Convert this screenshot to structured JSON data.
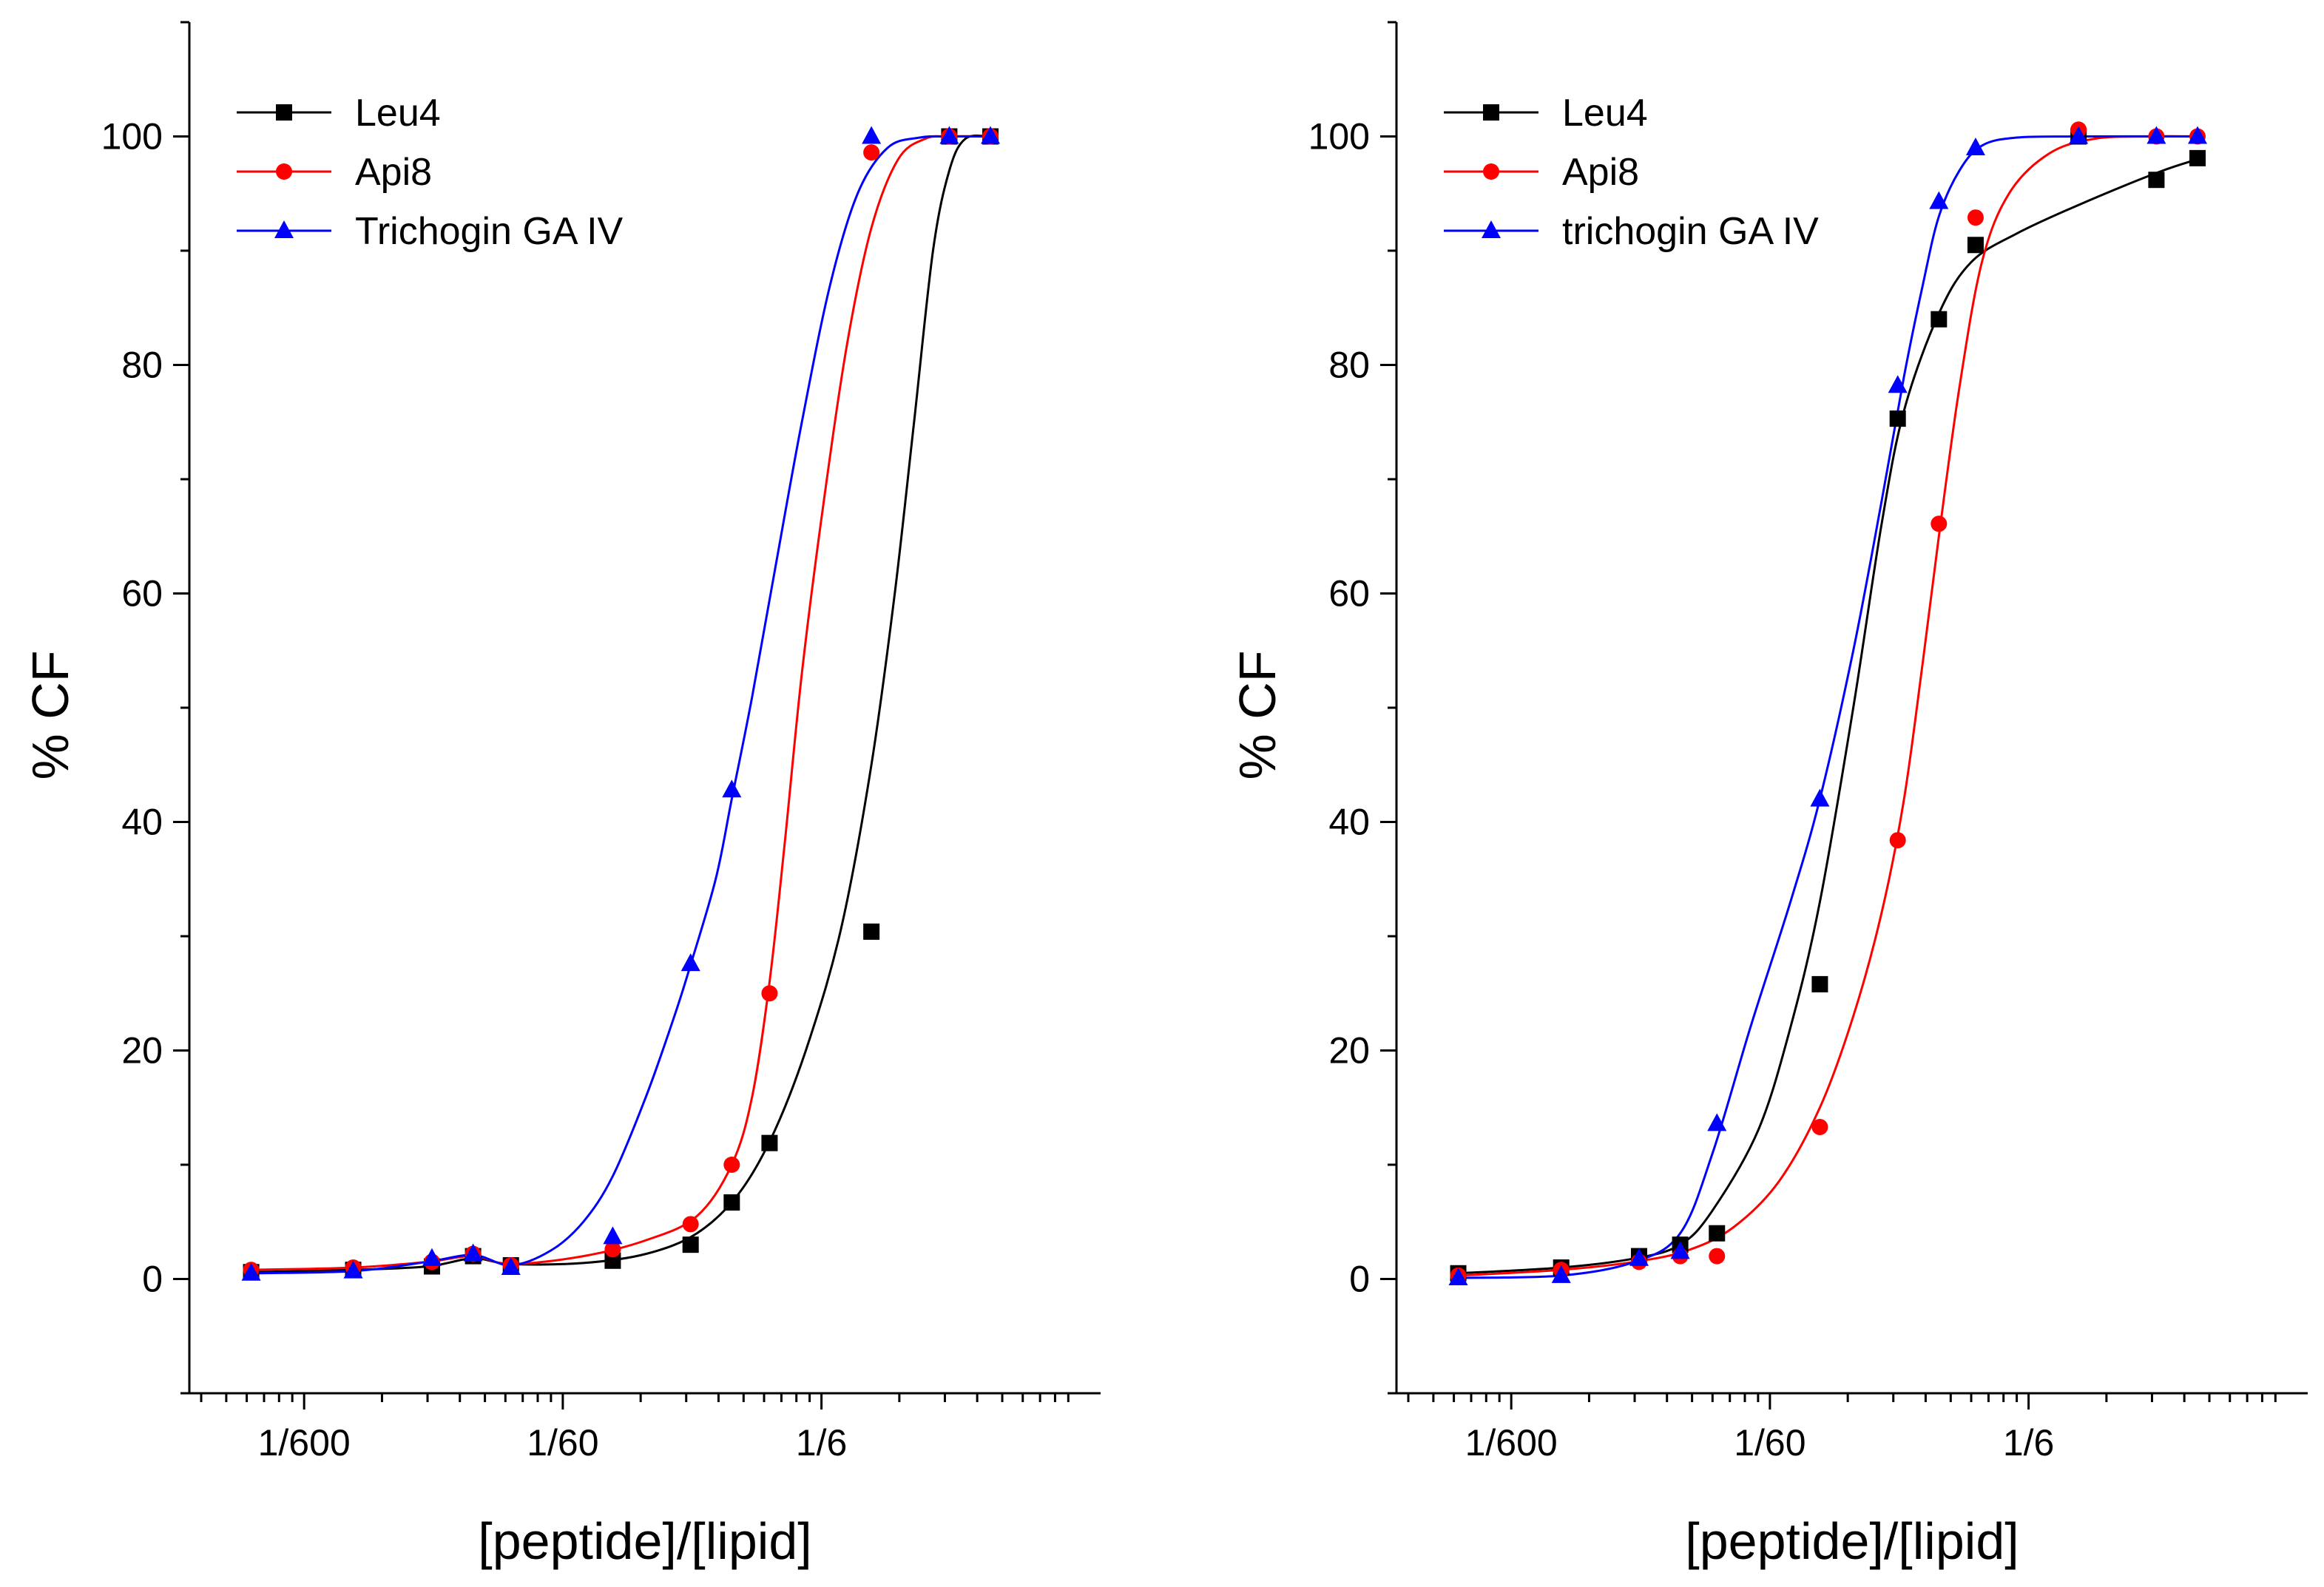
{
  "chart_data": [
    {
      "type": "scatter",
      "panel": "left",
      "xlabel": "[peptide]/[lipid]",
      "ylabel": "% CF",
      "xscale": "log",
      "xlim": [
        0.0006,
        2.0
      ],
      "ylim": [
        -10,
        110
      ],
      "xticks": [
        {
          "value": 0.0016667,
          "label": "1/600"
        },
        {
          "value": 0.016667,
          "label": "1/60"
        },
        {
          "value": 0.16667,
          "label": "1/6"
        }
      ],
      "yticks": [
        {
          "value": 0,
          "label": "0"
        },
        {
          "value": 20,
          "label": "20"
        },
        {
          "value": 40,
          "label": "40"
        },
        {
          "value": 60,
          "label": "60"
        },
        {
          "value": 80,
          "label": "80"
        },
        {
          "value": 100,
          "label": "100"
        }
      ],
      "legend_position": "top-left",
      "series": [
        {
          "name": "Leu4",
          "color": "#000000",
          "marker": "square",
          "points": [
            [
              0.00104,
              0.6
            ],
            [
              0.00258,
              0.8
            ],
            [
              0.0052,
              1.1
            ],
            [
              0.0075,
              2.0
            ],
            [
              0.0105,
              1.2
            ],
            [
              0.026,
              1.6
            ],
            [
              0.052,
              3.0
            ],
            [
              0.075,
              6.7
            ],
            [
              0.105,
              11.9
            ],
            [
              0.26,
              30.4
            ],
            [
              0.52,
              100
            ],
            [
              0.75,
              100
            ]
          ],
          "curve": [
            [
              0.00104,
              0.6
            ],
            [
              0.0026,
              0.8
            ],
            [
              0.005,
              1.1
            ],
            [
              0.0075,
              1.8
            ],
            [
              0.0105,
              1.3
            ],
            [
              0.02,
              1.4
            ],
            [
              0.035,
              2.2
            ],
            [
              0.055,
              4.0
            ],
            [
              0.08,
              7.5
            ],
            [
              0.11,
              13.0
            ],
            [
              0.15,
              21.0
            ],
            [
              0.2,
              31.0
            ],
            [
              0.26,
              45.0
            ],
            [
              0.32,
              60.0
            ],
            [
              0.38,
              75.0
            ],
            [
              0.45,
              90.0
            ],
            [
              0.52,
              97.0
            ],
            [
              0.6,
              99.8
            ],
            [
              0.75,
              100
            ]
          ]
        },
        {
          "name": "Api8",
          "color": "#ff0000",
          "marker": "circle",
          "points": [
            [
              0.00104,
              0.8
            ],
            [
              0.00258,
              1.0
            ],
            [
              0.0052,
              1.5
            ],
            [
              0.0075,
              2.2
            ],
            [
              0.0105,
              1.2
            ],
            [
              0.026,
              2.6
            ],
            [
              0.052,
              4.8
            ],
            [
              0.075,
              10.0
            ],
            [
              0.105,
              25.0
            ],
            [
              0.26,
              98.6
            ],
            [
              0.52,
              100
            ],
            [
              0.75,
              100
            ]
          ],
          "curve": [
            [
              0.00104,
              0.8
            ],
            [
              0.0026,
              1.0
            ],
            [
              0.005,
              1.5
            ],
            [
              0.0075,
              2.0
            ],
            [
              0.0105,
              1.3
            ],
            [
              0.02,
              2.0
            ],
            [
              0.035,
              3.4
            ],
            [
              0.055,
              5.5
            ],
            [
              0.075,
              10.0
            ],
            [
              0.09,
              16.0
            ],
            [
              0.105,
              26.0
            ],
            [
              0.12,
              38.0
            ],
            [
              0.14,
              53.0
            ],
            [
              0.17,
              68.0
            ],
            [
              0.21,
              82.0
            ],
            [
              0.26,
              92.0
            ],
            [
              0.33,
              98.0
            ],
            [
              0.42,
              99.8
            ],
            [
              0.52,
              100
            ],
            [
              0.75,
              100
            ]
          ]
        },
        {
          "name": "Trichogin GA IV",
          "color": "#0000ff",
          "marker": "triangle",
          "points": [
            [
              0.00104,
              0.5
            ],
            [
              0.00258,
              0.7
            ],
            [
              0.0052,
              1.8
            ],
            [
              0.0075,
              2.2
            ],
            [
              0.0105,
              1.0
            ],
            [
              0.026,
              3.7
            ],
            [
              0.052,
              27.6
            ],
            [
              0.075,
              42.8
            ],
            [
              0.26,
              100
            ],
            [
              0.52,
              100
            ],
            [
              0.75,
              100
            ]
          ],
          "curve": [
            [
              0.00104,
              0.5
            ],
            [
              0.0026,
              0.7
            ],
            [
              0.005,
              1.5
            ],
            [
              0.0075,
              2.1
            ],
            [
              0.0105,
              1.2
            ],
            [
              0.015,
              2.5
            ],
            [
              0.02,
              5.0
            ],
            [
              0.026,
              9.0
            ],
            [
              0.035,
              16.0
            ],
            [
              0.045,
              23.0
            ],
            [
              0.052,
              27.5
            ],
            [
              0.065,
              35.0
            ],
            [
              0.075,
              42.0
            ],
            [
              0.09,
              51.0
            ],
            [
              0.11,
              62.0
            ],
            [
              0.14,
              75.0
            ],
            [
              0.18,
              87.0
            ],
            [
              0.23,
              95.0
            ],
            [
              0.3,
              99.0
            ],
            [
              0.4,
              99.9
            ],
            [
              0.52,
              100
            ],
            [
              0.75,
              100
            ]
          ]
        }
      ]
    },
    {
      "type": "scatter",
      "panel": "right",
      "xlabel": "[peptide]/[lipid]",
      "ylabel": "% CF",
      "xscale": "log",
      "xlim": [
        0.0006,
        2.0
      ],
      "ylim": [
        -10,
        110
      ],
      "xticks": [
        {
          "value": 0.0016667,
          "label": "1/600"
        },
        {
          "value": 0.016667,
          "label": "1/60"
        },
        {
          "value": 0.16667,
          "label": "1/6"
        }
      ],
      "yticks": [
        {
          "value": 0,
          "label": "0"
        },
        {
          "value": 20,
          "label": "20"
        },
        {
          "value": 40,
          "label": "40"
        },
        {
          "value": 60,
          "label": "60"
        },
        {
          "value": 80,
          "label": "80"
        },
        {
          "value": 100,
          "label": "100"
        }
      ],
      "legend_position": "top-left",
      "series": [
        {
          "name": "Leu4",
          "color": "#000000",
          "marker": "square",
          "points": [
            [
              0.00104,
              0.5
            ],
            [
              0.0026,
              1.0
            ],
            [
              0.0052,
              2.0
            ],
            [
              0.0075,
              3.0
            ],
            [
              0.0104,
              4.0
            ],
            [
              0.026,
              25.8
            ],
            [
              0.052,
              75.3
            ],
            [
              0.075,
              84.0
            ],
            [
              0.104,
              90.5
            ],
            [
              0.26,
              100
            ],
            [
              0.52,
              96.2
            ],
            [
              0.75,
              98.1
            ]
          ],
          "curve": [
            [
              0.00104,
              0.5
            ],
            [
              0.0026,
              1.0
            ],
            [
              0.005,
              1.8
            ],
            [
              0.0075,
              3.0
            ],
            [
              0.01,
              6.0
            ],
            [
              0.015,
              13.0
            ],
            [
              0.02,
              22.0
            ],
            [
              0.026,
              33.0
            ],
            [
              0.035,
              50.0
            ],
            [
              0.045,
              66.0
            ],
            [
              0.055,
              76.0
            ],
            [
              0.075,
              84.5
            ],
            [
              0.1,
              89.0
            ],
            [
              0.15,
              91.5
            ],
            [
              0.26,
              94.0
            ],
            [
              0.52,
              96.8
            ],
            [
              0.75,
              98.0
            ]
          ]
        },
        {
          "name": "Api8",
          "color": "#ff0000",
          "marker": "circle",
          "points": [
            [
              0.00104,
              0.3
            ],
            [
              0.0026,
              0.8
            ],
            [
              0.0052,
              1.5
            ],
            [
              0.0075,
              2.0
            ],
            [
              0.0104,
              2.0
            ],
            [
              0.026,
              13.3
            ],
            [
              0.052,
              38.4
            ],
            [
              0.075,
              66.1
            ],
            [
              0.104,
              92.9
            ],
            [
              0.26,
              100.6
            ],
            [
              0.52,
              100
            ],
            [
              0.75,
              100
            ]
          ],
          "curve": [
            [
              0.00104,
              0.3
            ],
            [
              0.0026,
              0.8
            ],
            [
              0.005,
              1.5
            ],
            [
              0.008,
              2.5
            ],
            [
              0.012,
              4.5
            ],
            [
              0.018,
              8.5
            ],
            [
              0.026,
              15.0
            ],
            [
              0.035,
              23.0
            ],
            [
              0.045,
              32.0
            ],
            [
              0.055,
              42.0
            ],
            [
              0.065,
              54.0
            ],
            [
              0.075,
              65.0
            ],
            [
              0.09,
              78.0
            ],
            [
              0.11,
              89.0
            ],
            [
              0.14,
              95.0
            ],
            [
              0.2,
              98.5
            ],
            [
              0.3,
              99.8
            ],
            [
              0.5,
              100
            ],
            [
              0.75,
              100
            ]
          ]
        },
        {
          "name": "trichogin GA IV",
          "color": "#0000ff",
          "marker": "triangle",
          "points": [
            [
              0.00104,
              0.1
            ],
            [
              0.0026,
              0.3
            ],
            [
              0.0052,
              1.8
            ],
            [
              0.0075,
              2.4
            ],
            [
              0.0104,
              13.6
            ],
            [
              0.026,
              42.0
            ],
            [
              0.052,
              78.2
            ],
            [
              0.075,
              94.3
            ],
            [
              0.104,
              99.0
            ],
            [
              0.26,
              100
            ],
            [
              0.52,
              100
            ],
            [
              0.75,
              100
            ]
          ],
          "curve": [
            [
              0.00104,
              0.1
            ],
            [
              0.0026,
              0.3
            ],
            [
              0.005,
              1.5
            ],
            [
              0.0075,
              4.0
            ],
            [
              0.01,
              11.0
            ],
            [
              0.014,
              22.0
            ],
            [
              0.02,
              33.0
            ],
            [
              0.026,
              42.0
            ],
            [
              0.035,
              55.0
            ],
            [
              0.045,
              68.0
            ],
            [
              0.055,
              79.0
            ],
            [
              0.065,
              87.0
            ],
            [
              0.075,
              93.0
            ],
            [
              0.09,
              97.0
            ],
            [
              0.11,
              99.2
            ],
            [
              0.15,
              99.9
            ],
            [
              0.26,
              100
            ],
            [
              0.75,
              100
            ]
          ]
        }
      ]
    }
  ]
}
